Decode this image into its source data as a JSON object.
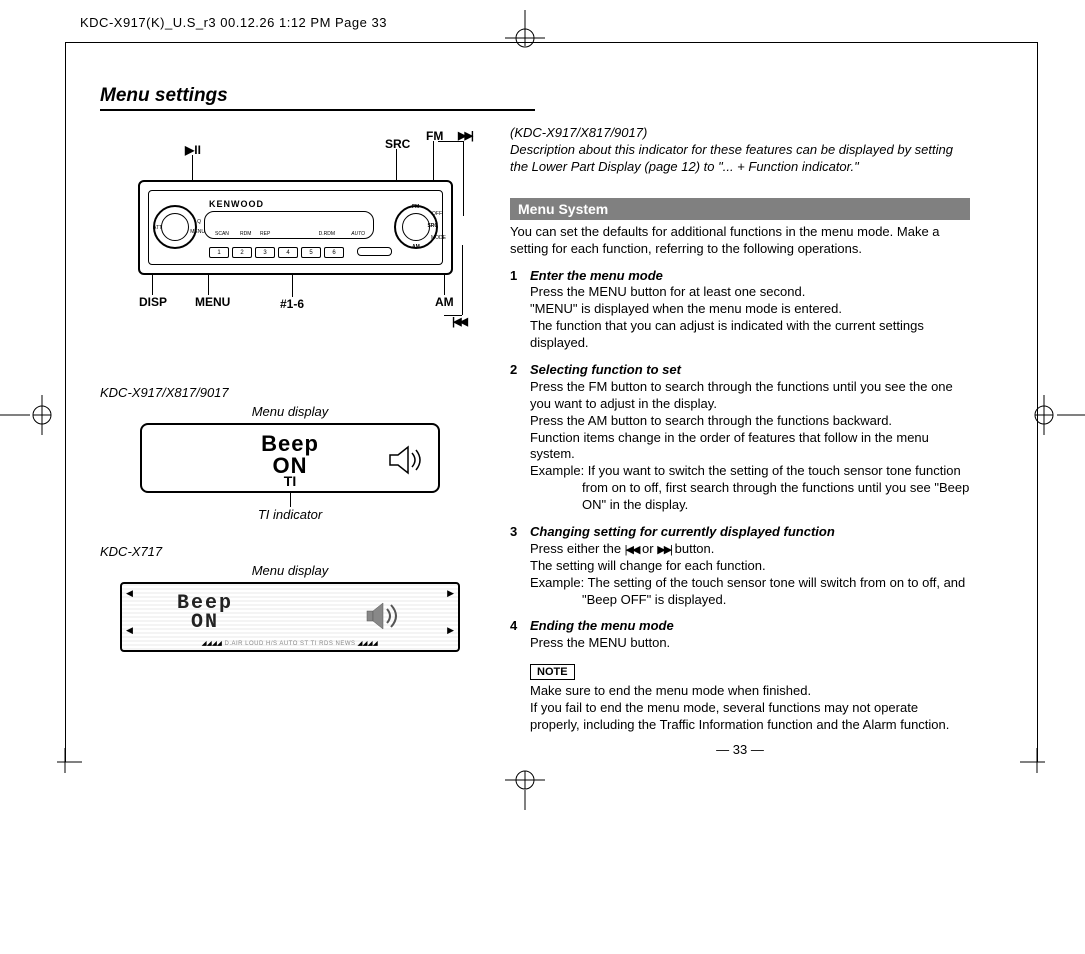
{
  "print_header": "KDC-X917(K)_U.S_r3  00.12.26 1:12 PM  Page 33",
  "section_title": "Menu settings",
  "headunit": {
    "brand": "KENWOOD",
    "labels": {
      "play_pause": "▶II",
      "src": "SRC",
      "fm": "FM",
      "ffwd": "▶▶|",
      "disp": "DISP",
      "menu": "MENU",
      "preset": "#1-6",
      "am": "AM",
      "rew": "|◀◀"
    },
    "lcd_small": {
      "scan": "SCAN",
      "rdm": "RDM",
      "rep": "REP",
      "drdm": "D.RDM",
      "auto": "AUTO"
    },
    "knob_left": {
      "att": "ATT",
      "q": "Q",
      "menu": "MENU"
    },
    "knob_right": {
      "fm": "FM",
      "src": "SRC",
      "am": "AM",
      "mode": "MODE",
      "off": "OFF"
    },
    "preset_buttons": [
      "1",
      "2",
      "3",
      "4",
      "5",
      "6"
    ]
  },
  "model1": {
    "name": "KDC-X917/X817/9017",
    "caption_top": "Menu display",
    "display_line1": "Beep",
    "display_line2": "ON",
    "ti": "TI",
    "caption_bottom": "TI indicator"
  },
  "model2": {
    "name": "KDC-X717",
    "caption_top": "Menu display",
    "display_line1": "Beep",
    "display_line2": "ON",
    "status_strip": "D.AIR  LOUD  H/S   AUTO        ST  TI  RDS NEWS"
  },
  "right": {
    "models": "(KDC-X917/X817/9017)",
    "desc": "Description about this indicator for these features can be displayed by setting the Lower Part Display (page 12) to \"... + Function indicator.\"",
    "gray_title": "Menu System",
    "intro": "You can set the defaults for additional functions in the menu mode. Make a setting for each function, referring to the following operations.",
    "steps": [
      {
        "n": "1",
        "title": "Enter the menu mode",
        "lines": [
          "Press the MENU button for at least one second.",
          "\"MENU\" is displayed when the menu mode is entered.",
          "The function that you can adjust is indicated with the current settings displayed."
        ]
      },
      {
        "n": "2",
        "title": "Selecting function to set",
        "lines": [
          "Press the FM button to search through the functions until you see the one you want to adjust in the display.",
          "Press the AM button to search through the functions backward.",
          "Function items change in the order of features that follow in the menu system."
        ],
        "example_pre": "Example: If you want to switch the setting of the touch sensor tone function from on to off, first search through the functions until you see \"Beep ON\" in the display."
      },
      {
        "n": "3",
        "title": "Changing setting for currently displayed function",
        "lines_html": "Press either the |◀◀ or ▶▶| button.",
        "lines2": "The setting will change for each function.",
        "example_pre": "Example: The setting of the touch sensor tone will switch from on to off, and \"Beep OFF\" is displayed."
      },
      {
        "n": "4",
        "title": "Ending the menu mode",
        "lines": [
          "Press the MENU button."
        ]
      }
    ],
    "note_label": "NOTE",
    "note_body": "Make sure to end the menu mode when finished.\nIf you fail to end the menu mode, several functions may not operate properly, including the Traffic Information function and the Alarm function."
  },
  "page_number": "— 33 —"
}
